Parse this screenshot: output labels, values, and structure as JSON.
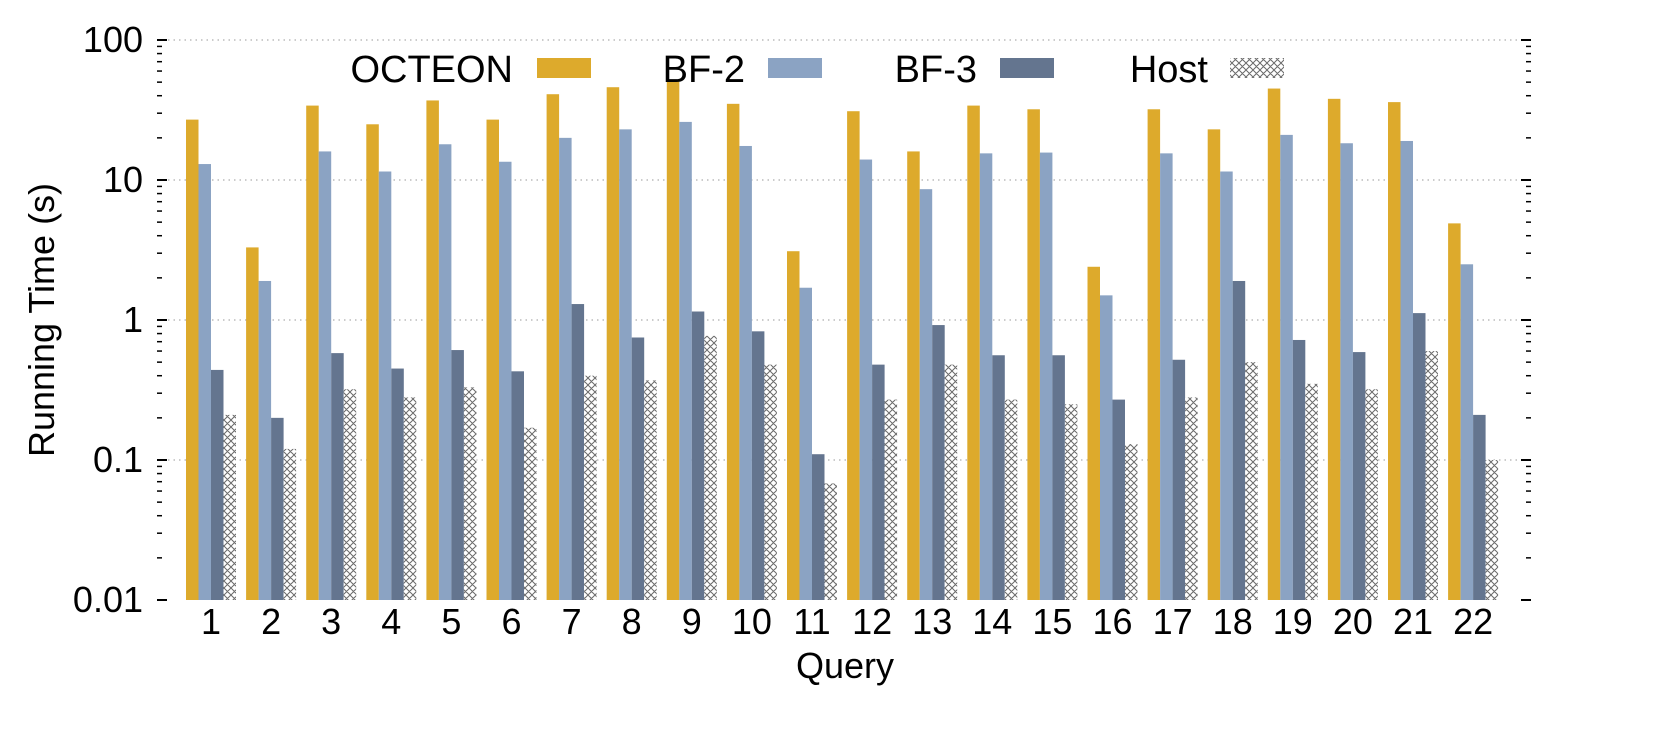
{
  "chart_data": {
    "type": "bar",
    "title": "",
    "xlabel": "Query",
    "ylabel": "Running Time (s)",
    "yscale": "log",
    "ylim": [
      0.01,
      100
    ],
    "y_ticks": [
      "0.01",
      "0.1",
      "1",
      "10",
      "100"
    ],
    "grid": "horizontal dotted at major ticks",
    "legend_position": "top",
    "categories": [
      "1",
      "2",
      "3",
      "4",
      "5",
      "6",
      "7",
      "8",
      "9",
      "10",
      "11",
      "12",
      "13",
      "14",
      "15",
      "16",
      "17",
      "18",
      "19",
      "20",
      "21",
      "22"
    ],
    "series": [
      {
        "name": "OCTEON",
        "color": "#DDAA2C",
        "pattern": "solid",
        "values": [
          27,
          3.3,
          34,
          25,
          37,
          27,
          41,
          46,
          52,
          35,
          3.1,
          31,
          16,
          34,
          32,
          2.4,
          32,
          23,
          45,
          38,
          36,
          4.9
        ]
      },
      {
        "name": "BF-2",
        "color": "#8BA3C3",
        "pattern": "solid",
        "values": [
          13,
          1.9,
          16,
          11.5,
          18,
          13.5,
          20,
          23,
          26,
          17.5,
          1.7,
          14,
          8.6,
          15.5,
          15.7,
          1.5,
          15.5,
          11.5,
          21,
          18.3,
          19,
          2.5
        ]
      },
      {
        "name": "BF-3",
        "color": "#64758F",
        "pattern": "solid",
        "values": [
          0.44,
          0.2,
          0.58,
          0.45,
          0.61,
          0.43,
          1.3,
          0.75,
          1.15,
          0.83,
          0.11,
          0.48,
          0.92,
          0.56,
          0.56,
          0.27,
          0.52,
          1.9,
          0.72,
          0.59,
          1.12,
          0.21
        ]
      },
      {
        "name": "Host",
        "color": "#666666",
        "pattern": "crosshatch",
        "values": [
          0.21,
          0.12,
          0.32,
          0.28,
          0.33,
          0.17,
          0.4,
          0.37,
          0.77,
          0.48,
          0.068,
          0.27,
          0.48,
          0.27,
          0.25,
          0.13,
          0.28,
          0.5,
          0.35,
          0.32,
          0.6,
          0.1
        ]
      }
    ]
  }
}
